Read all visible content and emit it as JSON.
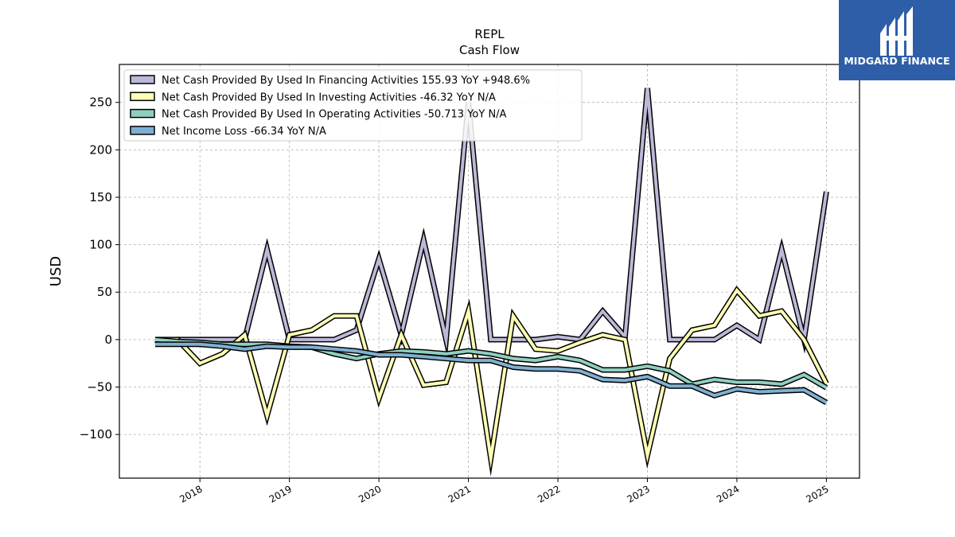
{
  "chart_data": {
    "type": "line",
    "title": "REPL",
    "subtitle": "Cash Flow",
    "xlabel": "",
    "ylabel": "USD",
    "x_ticks": [
      "2018",
      "2019",
      "2020",
      "2021",
      "2022",
      "2023",
      "2024",
      "2025"
    ],
    "y_ticks": [
      "−100",
      "−50",
      "0",
      "50",
      "100",
      "150",
      "200",
      "250"
    ],
    "ylim": [
      -146,
      290
    ],
    "xlim": [
      2017.1,
      2025.37
    ],
    "grid": true,
    "legend_position": "top-left",
    "x": [
      2017.5,
      2017.75,
      2018.0,
      2018.25,
      2018.5,
      2018.75,
      2019.0,
      2019.25,
      2019.5,
      2019.75,
      2020.0,
      2020.25,
      2020.5,
      2020.75,
      2021.0,
      2021.25,
      2021.5,
      2021.75,
      2022.0,
      2022.25,
      2022.5,
      2022.75,
      2023.0,
      2023.25,
      2023.5,
      2023.75,
      2024.0,
      2024.25,
      2024.5,
      2024.75,
      2025.0
    ],
    "series": [
      {
        "name": "Net Cash Provided By Used In Financing Activities  155.93 YoY +948.6%",
        "color": "#bcb8d8",
        "values": [
          -5,
          0,
          0,
          0,
          0,
          95,
          0,
          0,
          0,
          10,
          85,
          5,
          105,
          0,
          250,
          0,
          0,
          0,
          3,
          0,
          30,
          3,
          265,
          0,
          0,
          0,
          15,
          0,
          95,
          0,
          155.93
        ]
      },
      {
        "name": "Net Cash Provided By Used In Investing Activities  -46.32 YoY N/A",
        "color": "#fdfdb4",
        "values": [
          0,
          0,
          -25,
          -15,
          5,
          -80,
          5,
          10,
          25,
          25,
          -62,
          5,
          -48,
          -45,
          30,
          -125,
          25,
          -10,
          -12,
          -3,
          5,
          0,
          -122,
          -20,
          10,
          15,
          52,
          25,
          30,
          0,
          -46.32
        ]
      },
      {
        "name": "Net Cash Provided By Used In Operating Activities  -50.713 YoY N/A",
        "color": "#8fcfc1",
        "values": [
          0,
          -2,
          -3,
          -5,
          -5,
          -5,
          -7,
          -8,
          -15,
          -20,
          -15,
          -12,
          -13,
          -15,
          -12,
          -15,
          -20,
          -22,
          -18,
          -22,
          -32,
          -32,
          -28,
          -33,
          -47,
          -42,
          -45,
          -45,
          -47,
          -37,
          -50.713
        ]
      },
      {
        "name": "Net Income Loss  -66.34 YoY N/A",
        "color": "#7fb0d3",
        "values": [
          -5,
          -5,
          -5,
          -7,
          -10,
          -7,
          -8,
          -8,
          -10,
          -12,
          -16,
          -16,
          -18,
          -20,
          -22,
          -22,
          -29,
          -31,
          -31,
          -33,
          -42,
          -43,
          -39,
          -49,
          -49,
          -59,
          -52,
          -55,
          -54,
          -53,
          -66.34
        ]
      }
    ]
  },
  "watermark": {
    "text": "MIDGARD FINANCE",
    "background": "#2f5ea8"
  }
}
